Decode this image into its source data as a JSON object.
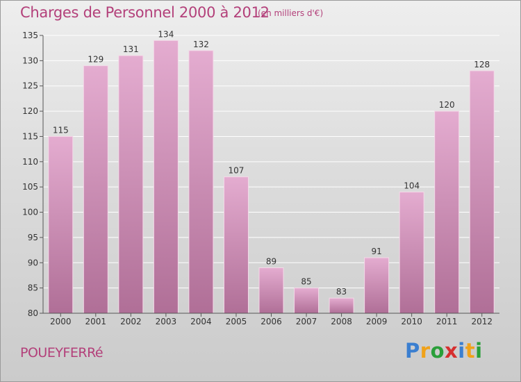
{
  "title": "Charges de Personnel 2000 à 2012",
  "subtitle": "(en milliers d'€)",
  "commune": "POUEYFERRé",
  "logo": {
    "letters": [
      "P",
      "r",
      "o",
      "x",
      "i",
      "t",
      "i"
    ],
    "colors": [
      "#3b7fd0",
      "#f0a21a",
      "#2a9f3a",
      "#d62f2f",
      "#3b7fd0",
      "#f0a21a",
      "#2a9f3a"
    ]
  },
  "colors": {
    "bar": "#d9a0c4",
    "bar_dark": "#b77099",
    "text": "#333333",
    "accent": "#b3407a"
  },
  "chart_data": {
    "type": "bar",
    "categories": [
      "2000",
      "2001",
      "2002",
      "2003",
      "2004",
      "2005",
      "2006",
      "2007",
      "2008",
      "2009",
      "2010",
      "2011",
      "2012"
    ],
    "values": [
      115,
      129,
      131,
      134,
      132,
      107,
      89,
      85,
      83,
      91,
      104,
      120,
      128
    ],
    "ylim": [
      80,
      135
    ],
    "yticks": [
      80,
      85,
      90,
      95,
      100,
      105,
      110,
      115,
      120,
      125,
      130,
      135
    ],
    "grid": true,
    "title": "Charges de Personnel 2000 à 2012",
    "xlabel": "",
    "ylabel": ""
  }
}
